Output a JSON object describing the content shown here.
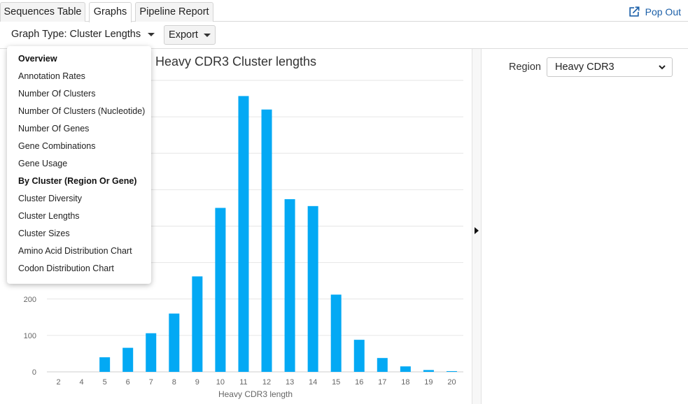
{
  "tabs": [
    {
      "label": "Sequences Table",
      "active": false
    },
    {
      "label": "Graphs",
      "active": true
    },
    {
      "label": "Pipeline Report",
      "active": false
    }
  ],
  "popout": {
    "label": "Pop Out",
    "icon": "external-link-icon"
  },
  "toolbar": {
    "graph_type_label": "Graph Type: Cluster Lengths",
    "export_label": "Export"
  },
  "menu": {
    "items": [
      {
        "label": "Overview",
        "header": true
      },
      {
        "label": "Annotation Rates",
        "header": false
      },
      {
        "label": "Number Of Clusters",
        "header": false
      },
      {
        "label": "Number Of Clusters (Nucleotide)",
        "header": false
      },
      {
        "label": "Number Of Genes",
        "header": false
      },
      {
        "label": "Gene Combinations",
        "header": false
      },
      {
        "label": "Gene Usage",
        "header": false
      },
      {
        "label": "By Cluster (Region Or Gene)",
        "header": true
      },
      {
        "label": "Cluster Diversity",
        "header": false
      },
      {
        "label": "Cluster Lengths",
        "header": false
      },
      {
        "label": "Cluster Sizes",
        "header": false
      },
      {
        "label": "Amino Acid Distribution Chart",
        "header": false
      },
      {
        "label": "Codon Distribution Chart",
        "header": false
      }
    ]
  },
  "side": {
    "region_label": "Region",
    "region_value": "Heavy CDR3"
  },
  "colors": {
    "bar": "#03a9f4",
    "grid": "#e6e6e6",
    "link": "#1b5fa8"
  },
  "chart_data": {
    "type": "bar",
    "title": "Heavy CDR3 Cluster lengths",
    "xlabel": "Heavy CDR3 length",
    "ylabel": "",
    "categories": [
      "2",
      "4",
      "5",
      "6",
      "7",
      "8",
      "9",
      "10",
      "11",
      "12",
      "13",
      "14",
      "15",
      "16",
      "17",
      "18",
      "19",
      "20"
    ],
    "values": [
      0,
      0,
      40,
      66,
      106,
      160,
      262,
      450,
      757,
      720,
      474,
      455,
      212,
      88,
      38,
      15,
      5,
      2
    ],
    "ylim": [
      0,
      800
    ],
    "yticks": [
      0,
      100,
      200
    ],
    "grid": true
  }
}
